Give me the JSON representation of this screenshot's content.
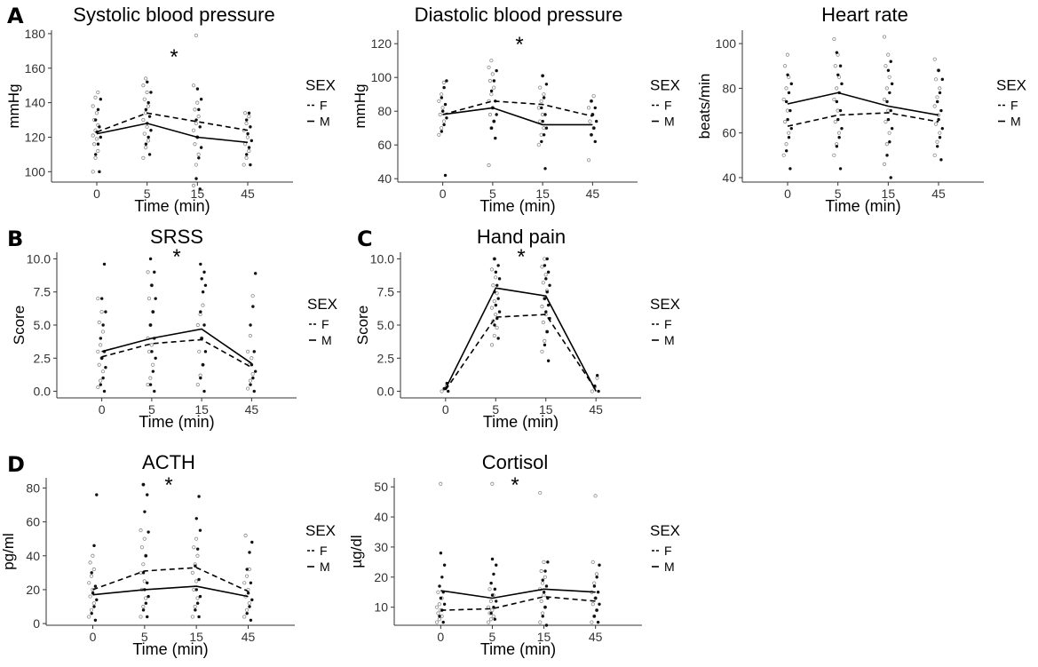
{
  "colors": {
    "line": "#000000",
    "axis": "#333333",
    "female_points": "#8a8a8a",
    "male_points": "#111111"
  },
  "panel_letters": [
    "A",
    "B",
    "C",
    "D"
  ],
  "legend": {
    "title": "SEX",
    "items": [
      "F",
      "M"
    ]
  },
  "significance_marker": "*",
  "chart_data": [
    {
      "id": "sbp",
      "type": "line",
      "title": "Systolic blood pressure",
      "xlabel": "Time (min)",
      "ylabel": "mmHg",
      "categories": [
        "0",
        "5",
        "15",
        "45"
      ],
      "ylim": [
        94,
        182
      ],
      "yticks": [
        100,
        120,
        140,
        160,
        180
      ],
      "significance": "*",
      "series": [
        {
          "name": "F",
          "style": "dashed",
          "values": [
            123,
            134,
            129,
            124
          ]
        },
        {
          "name": "M",
          "style": "solid",
          "values": [
            122,
            128,
            120,
            117
          ]
        }
      ],
      "points": {
        "F": [
          [
            100,
            108,
            112,
            116,
            119,
            121,
            124,
            127,
            130,
            134,
            138,
            143,
            146
          ],
          [
            108,
            114,
            118,
            122,
            126,
            130,
            134,
            138,
            142,
            146,
            150,
            154
          ],
          [
            92,
            104,
            110,
            116,
            120,
            124,
            128,
            132,
            136,
            140,
            150,
            179
          ],
          [
            104,
            108,
            112,
            116,
            120,
            124,
            128,
            132,
            134
          ]
        ],
        "M": [
          [
            100,
            110,
            116,
            120,
            123,
            126,
            130,
            136,
            142
          ],
          [
            110,
            116,
            120,
            124,
            128,
            132,
            136,
            140,
            146,
            152
          ],
          [
            90,
            96,
            108,
            114,
            120,
            126,
            130,
            136,
            142,
            148
          ],
          [
            104,
            110,
            114,
            118,
            122,
            126,
            130,
            134
          ]
        ]
      }
    },
    {
      "id": "dbp",
      "type": "line",
      "title": "Diastolic blood pressure",
      "xlabel": "Time (min)",
      "ylabel": "mmHg",
      "categories": [
        "0",
        "5",
        "15",
        "45"
      ],
      "ylim": [
        38,
        128
      ],
      "yticks": [
        40,
        60,
        80,
        100,
        120
      ],
      "significance": "*",
      "series": [
        {
          "name": "F",
          "style": "dashed",
          "values": [
            78,
            86,
            84,
            77
          ]
        },
        {
          "name": "M",
          "style": "solid",
          "values": [
            78,
            82,
            72,
            72
          ]
        }
      ],
      "points": {
        "F": [
          [
            66,
            70,
            74,
            78,
            82,
            86,
            90,
            97
          ],
          [
            48,
            70,
            74,
            78,
            82,
            86,
            90,
            94,
            98,
            102,
            106,
            110
          ],
          [
            60,
            66,
            70,
            74,
            78,
            82,
            86,
            90,
            94,
            101
          ],
          [
            51,
            66,
            70,
            74,
            78,
            82,
            86,
            89
          ]
        ],
        "M": [
          [
            42,
            68,
            72,
            76,
            80,
            84,
            88,
            94,
            98
          ],
          [
            64,
            70,
            74,
            78,
            82,
            86,
            92,
            98,
            104
          ],
          [
            46,
            62,
            66,
            70,
            74,
            78,
            82,
            88,
            96,
            101
          ],
          [
            62,
            66,
            70,
            74,
            78,
            82,
            86
          ]
        ]
      }
    },
    {
      "id": "hr",
      "type": "line",
      "title": "Heart rate",
      "xlabel": "Time (min)",
      "ylabel": "beats/min",
      "categories": [
        "0",
        "5",
        "15",
        "45"
      ],
      "ylim": [
        38,
        106
      ],
      "yticks": [
        40,
        60,
        80,
        100
      ],
      "series": [
        {
          "name": "F",
          "style": "dashed",
          "values": [
            63,
            68,
            69,
            65
          ]
        },
        {
          "name": "M",
          "style": "solid",
          "values": [
            73,
            78,
            72,
            68
          ]
        }
      ],
      "points": {
        "F": [
          [
            50,
            55,
            60,
            65,
            70,
            75,
            80,
            85,
            90,
            95
          ],
          [
            50,
            55,
            60,
            65,
            70,
            75,
            80,
            85,
            90,
            95,
            102
          ],
          [
            46,
            55,
            60,
            65,
            70,
            75,
            80,
            85,
            90,
            95,
            103
          ],
          [
            50,
            56,
            60,
            64,
            68,
            72,
            76,
            80,
            84,
            88,
            93
          ]
        ],
        "M": [
          [
            44,
            52,
            58,
            62,
            66,
            70,
            74,
            78,
            82,
            86
          ],
          [
            44,
            54,
            58,
            62,
            66,
            70,
            74,
            78,
            82,
            86,
            90,
            96
          ],
          [
            40,
            50,
            56,
            62,
            66,
            70,
            74,
            78,
            82,
            88,
            92
          ],
          [
            48,
            54,
            58,
            62,
            66,
            70,
            74,
            78,
            84,
            88
          ]
        ]
      }
    },
    {
      "id": "srss",
      "type": "line",
      "title": "SRSS",
      "xlabel": "Time (min)",
      "ylabel": "Score",
      "categories": [
        "0",
        "5",
        "15",
        "45"
      ],
      "ylim": [
        -0.5,
        10.5
      ],
      "yticks": [
        0,
        2.5,
        5,
        7.5,
        10
      ],
      "ytick_labels": [
        "0.0",
        "2.5",
        "5.0",
        "7.5",
        "10.0"
      ],
      "significance": "*",
      "series": [
        {
          "name": "F",
          "style": "dashed",
          "values": [
            2.6,
            3.6,
            3.9,
            1.8
          ]
        },
        {
          "name": "M",
          "style": "solid",
          "values": [
            3.0,
            4.0,
            4.7,
            2.1
          ]
        }
      ],
      "points": {
        "F": [
          [
            0.3,
            0.8,
            1.5,
            2.0,
            2.5,
            3.0,
            3.5,
            4.5,
            5.2,
            6.0,
            7.0
          ],
          [
            0.5,
            1.0,
            2.0,
            3.0,
            3.5,
            4.0,
            5.0,
            6.0,
            7.0,
            8.0,
            9.0
          ],
          [
            0.5,
            1.2,
            2.0,
            3.0,
            4.0,
            5.0,
            5.8,
            6.5
          ],
          [
            0.2,
            0.8,
            1.3,
            2.0,
            2.5,
            3.0,
            4.2,
            7.2
          ]
        ],
        "M": [
          [
            0.0,
            0.5,
            1.0,
            1.8,
            2.5,
            3.0,
            4.0,
            5.0,
            6.0,
            7.0,
            9.6
          ],
          [
            0.0,
            0.5,
            1.5,
            2.5,
            3.0,
            4.0,
            5.0,
            6.0,
            7.0,
            8.0,
            9.0,
            10.0
          ],
          [
            0.0,
            1.0,
            2.0,
            3.0,
            4.0,
            5.0,
            6.0,
            7.5,
            8.0,
            8.5,
            9.0,
            9.6
          ],
          [
            0.0,
            0.5,
            1.0,
            1.5,
            2.0,
            3.0,
            5.0,
            6.4,
            8.9
          ]
        ]
      }
    },
    {
      "id": "handpain",
      "type": "line",
      "title": "Hand pain",
      "xlabel": "Time (min)",
      "ylabel": "Score",
      "categories": [
        "0",
        "5",
        "15",
        "45"
      ],
      "ylim": [
        -0.5,
        10.5
      ],
      "yticks": [
        0,
        2.5,
        5,
        7.5,
        10
      ],
      "ytick_labels": [
        "0.0",
        "2.5",
        "5.0",
        "7.5",
        "10.0"
      ],
      "significance": "*",
      "series": [
        {
          "name": "F",
          "style": "dashed",
          "values": [
            0.1,
            5.6,
            5.8,
            0.1
          ]
        },
        {
          "name": "M",
          "style": "solid",
          "values": [
            0.2,
            7.8,
            7.2,
            0.0
          ]
        }
      ],
      "points": {
        "F": [
          [
            0.0,
            0.2,
            0.4
          ],
          [
            3.5,
            4.2,
            4.8,
            5.3,
            5.8,
            6.3,
            6.8,
            7.4,
            8.0,
            8.6,
            9.2,
            10.0
          ],
          [
            3.0,
            3.8,
            4.5,
            5.2,
            5.8,
            6.4,
            7.0,
            7.6,
            8.2,
            8.8,
            9.4,
            10.0
          ],
          [
            0.0,
            0.3,
            1.0
          ]
        ],
        "M": [
          [
            0.0,
            0.2,
            0.6
          ],
          [
            4.0,
            5.0,
            5.5,
            6.0,
            6.5,
            7.0,
            7.5,
            8.0,
            8.5,
            9.0,
            9.5,
            10.0
          ],
          [
            2.3,
            3.5,
            4.5,
            5.5,
            6.0,
            6.5,
            7.0,
            7.5,
            8.0,
            8.5,
            9.0,
            9.5,
            10.0
          ],
          [
            0.0,
            0.4,
            1.2
          ]
        ]
      }
    },
    {
      "id": "acth",
      "type": "line",
      "title": "ACTH",
      "xlabel": "Time (min)",
      "ylabel": "pg/ml",
      "categories": [
        "0",
        "5",
        "15",
        "45"
      ],
      "ylim": [
        -1,
        86
      ],
      "yticks": [
        0,
        20,
        40,
        60,
        80
      ],
      "significance": "*",
      "series": [
        {
          "name": "F",
          "style": "dashed",
          "values": [
            20,
            31,
            33,
            19
          ]
        },
        {
          "name": "M",
          "style": "solid",
          "values": [
            17,
            20,
            22,
            16
          ]
        }
      ],
      "points": {
        "F": [
          [
            4,
            8,
            12,
            16,
            20,
            24,
            28,
            32,
            36,
            40
          ],
          [
            4,
            10,
            15,
            20,
            25,
            30,
            35,
            40,
            45,
            50,
            55,
            82
          ],
          [
            4,
            10,
            15,
            20,
            25,
            30,
            35,
            40,
            45,
            50
          ],
          [
            4,
            8,
            12,
            16,
            20,
            24,
            28,
            32,
            52
          ]
        ],
        "M": [
          [
            2,
            6,
            10,
            14,
            18,
            22,
            30,
            46,
            76
          ],
          [
            4,
            8,
            12,
            16,
            20,
            24,
            30,
            40,
            54,
            66,
            76,
            82
          ],
          [
            4,
            8,
            12,
            16,
            20,
            26,
            34,
            44,
            55,
            62,
            75
          ],
          [
            2,
            6,
            10,
            14,
            18,
            24,
            32,
            42,
            48
          ]
        ]
      }
    },
    {
      "id": "cortisol",
      "type": "line",
      "title": "Cortisol",
      "xlabel": "Time (min)",
      "ylabel": "µg/dl",
      "categories": [
        "0",
        "5",
        "15",
        "45"
      ],
      "ylim": [
        4,
        53
      ],
      "yticks": [
        10,
        20,
        30,
        40,
        50
      ],
      "significance": "*",
      "series": [
        {
          "name": "F",
          "style": "dashed",
          "values": [
            9,
            9.5,
            13.5,
            12
          ]
        },
        {
          "name": "M",
          "style": "solid",
          "values": [
            15.5,
            13,
            16,
            15
          ]
        }
      ],
      "points": {
        "F": [
          [
            5,
            6,
            7,
            8,
            9,
            10,
            11,
            13,
            15,
            51
          ],
          [
            5,
            6,
            7,
            8,
            9,
            10,
            12,
            14,
            16,
            51
          ],
          [
            5,
            8,
            10,
            12,
            14,
            16,
            18,
            20,
            22,
            25,
            48
          ],
          [
            5,
            7,
            9,
            11,
            13,
            15,
            18,
            21,
            25,
            47
          ]
        ],
        "M": [
          [
            5,
            7,
            9,
            11,
            13,
            15,
            17,
            20,
            24,
            28
          ],
          [
            6,
            8,
            10,
            12,
            14,
            16,
            18,
            21,
            24,
            26
          ],
          [
            4,
            7,
            10,
            13,
            15,
            17,
            19,
            22,
            25
          ],
          [
            5,
            7,
            9,
            11,
            13,
            15,
            17,
            20,
            24
          ]
        ]
      }
    }
  ]
}
